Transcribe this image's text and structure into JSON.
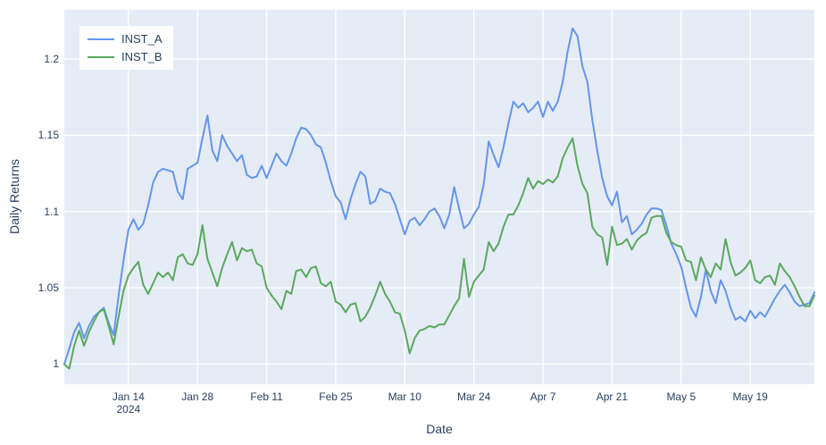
{
  "figure": {
    "background": "#ffffff",
    "plot_bgcolor": "#E5ECF6",
    "grid_color": "#ffffff",
    "font_color": "#2a3f5f"
  },
  "axes": {
    "x_title": "Date",
    "y_title": "Daily Returns",
    "x_ticks": [
      {
        "label": "Jan 14",
        "sub": "2024",
        "index": 13
      },
      {
        "label": "Jan 28",
        "sub": "",
        "index": 27
      },
      {
        "label": "Feb 11",
        "sub": "",
        "index": 41
      },
      {
        "label": "Feb 25",
        "sub": "",
        "index": 55
      },
      {
        "label": "Mar 10",
        "sub": "",
        "index": 69
      },
      {
        "label": "Mar 24",
        "sub": "",
        "index": 83
      },
      {
        "label": "Apr 7",
        "sub": "",
        "index": 97
      },
      {
        "label": "Apr 21",
        "sub": "",
        "index": 111
      },
      {
        "label": "May 5",
        "sub": "",
        "index": 125
      },
      {
        "label": "May 19",
        "sub": "",
        "index": 139
      }
    ],
    "y_ticks": [
      {
        "label": "1",
        "value": 1.0
      },
      {
        "label": "1.05",
        "value": 1.05
      },
      {
        "label": "1.1",
        "value": 1.1
      },
      {
        "label": "1.15",
        "value": 1.15
      },
      {
        "label": "1.2",
        "value": 1.2
      }
    ]
  },
  "legend": {
    "items": [
      {
        "label": "INST_A",
        "color": "#6495ED"
      },
      {
        "label": "INST_B",
        "color": "#5BA85F"
      }
    ]
  },
  "chart_data": {
    "type": "line",
    "title": "",
    "xlabel": "Date",
    "ylabel": "Daily Returns",
    "start_date": "2024-01-01",
    "frequency": "daily",
    "n_points": 153,
    "ylim": [
      0.9868,
      1.2322
    ],
    "grid": true,
    "legend_position": "top-left",
    "series": [
      {
        "name": "INST_A",
        "color": "#6495ED",
        "values": [
          1.0,
          1.01,
          1.021,
          1.027,
          1.017,
          1.025,
          1.031,
          1.034,
          1.037,
          1.027,
          1.019,
          1.045,
          1.068,
          1.088,
          1.095,
          1.088,
          1.092,
          1.104,
          1.119,
          1.126,
          1.128,
          1.127,
          1.126,
          1.113,
          1.108,
          1.128,
          1.13,
          1.132,
          1.148,
          1.163,
          1.14,
          1.133,
          1.15,
          1.143,
          1.138,
          1.133,
          1.137,
          1.124,
          1.122,
          1.123,
          1.13,
          1.122,
          1.13,
          1.138,
          1.133,
          1.13,
          1.138,
          1.148,
          1.155,
          1.154,
          1.15,
          1.144,
          1.142,
          1.132,
          1.12,
          1.11,
          1.106,
          1.095,
          1.108,
          1.118,
          1.126,
          1.123,
          1.105,
          1.107,
          1.115,
          1.113,
          1.112,
          1.105,
          1.095,
          1.085,
          1.094,
          1.096,
          1.091,
          1.095,
          1.1,
          1.102,
          1.097,
          1.089,
          1.098,
          1.116,
          1.102,
          1.089,
          1.092,
          1.098,
          1.103,
          1.118,
          1.146,
          1.137,
          1.129,
          1.142,
          1.158,
          1.172,
          1.168,
          1.171,
          1.165,
          1.168,
          1.172,
          1.162,
          1.172,
          1.166,
          1.172,
          1.185,
          1.205,
          1.22,
          1.215,
          1.195,
          1.185,
          1.16,
          1.14,
          1.122,
          1.11,
          1.104,
          1.113,
          1.093,
          1.097,
          1.085,
          1.088,
          1.092,
          1.098,
          1.102,
          1.102,
          1.101,
          1.091,
          1.079,
          1.072,
          1.064,
          1.05,
          1.037,
          1.031,
          1.044,
          1.062,
          1.048,
          1.04,
          1.055,
          1.048,
          1.037,
          1.029,
          1.031,
          1.028,
          1.035,
          1.03,
          1.034,
          1.031,
          1.037,
          1.043,
          1.048,
          1.052,
          1.047,
          1.041,
          1.038,
          1.039,
          1.04,
          1.047
        ]
      },
      {
        "name": "INST_B",
        "color": "#5BA85F",
        "values": [
          1.0,
          0.997,
          1.012,
          1.022,
          1.012,
          1.021,
          1.028,
          1.034,
          1.036,
          1.025,
          1.013,
          1.031,
          1.048,
          1.058,
          1.063,
          1.067,
          1.052,
          1.046,
          1.053,
          1.06,
          1.057,
          1.06,
          1.055,
          1.07,
          1.072,
          1.066,
          1.065,
          1.072,
          1.091,
          1.069,
          1.06,
          1.051,
          1.063,
          1.072,
          1.08,
          1.068,
          1.076,
          1.074,
          1.075,
          1.066,
          1.064,
          1.05,
          1.045,
          1.041,
          1.036,
          1.048,
          1.046,
          1.061,
          1.062,
          1.057,
          1.063,
          1.064,
          1.053,
          1.051,
          1.054,
          1.041,
          1.039,
          1.034,
          1.039,
          1.04,
          1.028,
          1.031,
          1.037,
          1.045,
          1.054,
          1.046,
          1.041,
          1.034,
          1.033,
          1.022,
          1.007,
          1.017,
          1.022,
          1.023,
          1.025,
          1.024,
          1.026,
          1.026,
          1.032,
          1.038,
          1.043,
          1.069,
          1.044,
          1.054,
          1.058,
          1.062,
          1.08,
          1.074,
          1.079,
          1.09,
          1.098,
          1.098,
          1.104,
          1.112,
          1.122,
          1.115,
          1.12,
          1.118,
          1.121,
          1.119,
          1.123,
          1.135,
          1.142,
          1.148,
          1.13,
          1.118,
          1.112,
          1.09,
          1.085,
          1.083,
          1.065,
          1.09,
          1.078,
          1.079,
          1.082,
          1.075,
          1.081,
          1.084,
          1.086,
          1.096,
          1.097,
          1.097,
          1.086,
          1.08,
          1.078,
          1.077,
          1.068,
          1.067,
          1.055,
          1.07,
          1.062,
          1.057,
          1.066,
          1.062,
          1.082,
          1.067,
          1.058,
          1.06,
          1.063,
          1.068,
          1.055,
          1.053,
          1.057,
          1.058,
          1.052,
          1.066,
          1.061,
          1.057,
          1.051,
          1.044,
          1.038,
          1.038,
          1.045
        ]
      }
    ]
  }
}
